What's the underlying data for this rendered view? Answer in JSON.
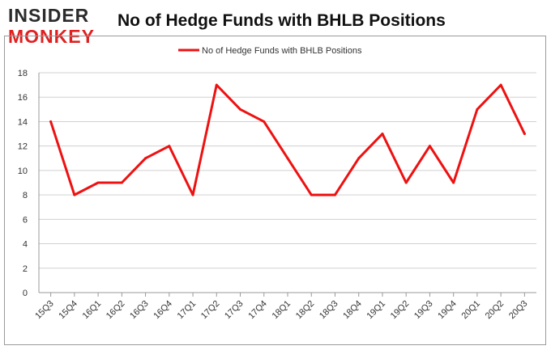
{
  "logo": {
    "line1": "INSIDER",
    "line2": "MONKEY"
  },
  "chart_data": {
    "type": "line",
    "title": "No of Hedge Funds with BHLB Positions",
    "xlabel": "",
    "ylabel": "",
    "categories": [
      "15Q3",
      "15Q4",
      "16Q1",
      "16Q2",
      "16Q3",
      "16Q4",
      "17Q1",
      "17Q2",
      "17Q3",
      "17Q4",
      "18Q1",
      "18Q2",
      "18Q3",
      "18Q4",
      "19Q1",
      "19Q2",
      "19Q3",
      "19Q4",
      "20Q1",
      "20Q2",
      "20Q3"
    ],
    "series": [
      {
        "name": "No of Hedge Funds with BHLB Positions",
        "color": "#ee1111",
        "values": [
          14,
          8,
          9,
          9,
          11,
          12,
          8,
          17,
          15,
          14,
          11,
          8,
          8,
          11,
          13,
          9,
          12,
          9,
          15,
          17,
          13
        ]
      }
    ],
    "ylim": [
      0,
      18
    ],
    "yticks": [
      0,
      2,
      4,
      6,
      8,
      10,
      12,
      14,
      16,
      18
    ],
    "grid": true,
    "legend": "top-center"
  }
}
